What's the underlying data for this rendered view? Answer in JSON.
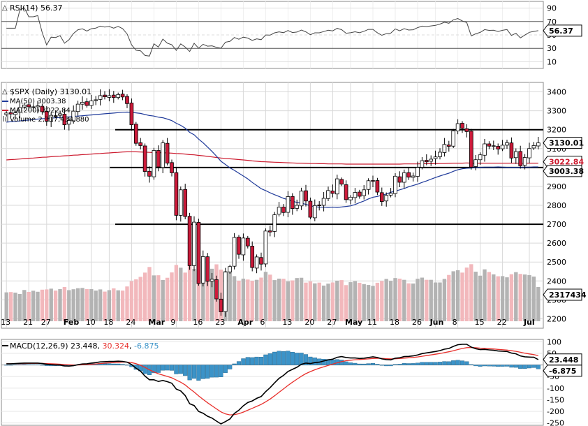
{
  "symbol_line": {
    "symbol": "$SPX",
    "period": "(Daily)",
    "last": "3130.01"
  },
  "rsi": {
    "label": "RSI(14)",
    "value": "56.37",
    "ticks": [
      90,
      70,
      50,
      30,
      10
    ],
    "overbought": 70,
    "oversold": 30
  },
  "price": {
    "last_tag": "3130.01",
    "ma50_tag": "3003.38",
    "ma200_tag": "3022.84",
    "ticks": [
      3400,
      3300,
      3200,
      3100,
      3000,
      2900,
      2800,
      2700,
      2600,
      2500,
      2400,
      2300,
      2200
    ],
    "ylim": [
      2150,
      3450
    ]
  },
  "legend": {
    "ma50": "MA(50) 3003.38",
    "ma200": "MA(200) 3022.84",
    "volume": "Volume 2,317,434,880",
    "ma50_color": "#1f3a9a",
    "ma200_color": "#cc1a2e"
  },
  "volume": {
    "tag": "2317434"
  },
  "x_axis": {
    "ticks": [
      "13",
      "21",
      "27",
      "Feb",
      "10",
      "18",
      "24",
      "Mar",
      "9",
      "16",
      "23",
      "Apr",
      "6",
      "13",
      "20",
      "27",
      "May",
      "11",
      "18",
      "26",
      "Jun",
      "8",
      "15",
      "22",
      "Jul"
    ]
  },
  "macd": {
    "label": "MACD(12,26,9)",
    "macd_value": "23.448",
    "signal_value": "30.324",
    "hist_value": "-6.875",
    "macd_tag": "23.448",
    "hist_tag": "-6.875",
    "ticks": [
      100,
      50,
      0,
      -50,
      -100,
      -150,
      -200,
      -250
    ],
    "colors": {
      "macd": "#000000",
      "signal": "#e8302c",
      "hist": "#3b93c8"
    }
  },
  "colors": {
    "up": "#ffffff",
    "down": "#cc1a3a",
    "vol_up": "#b3b3b3",
    "vol_down": "#f2b8bc",
    "grid": "#d9d9d9"
  },
  "chart_data": {
    "type": "candlestick",
    "title": "$SPX (Daily)",
    "dates": [
      "2020-01-13",
      "2020-01-14",
      "2020-01-15",
      "2020-01-16",
      "2020-01-17",
      "2020-01-21",
      "2020-01-22",
      "2020-01-23",
      "2020-01-24",
      "2020-01-27",
      "2020-01-28",
      "2020-01-29",
      "2020-01-30",
      "2020-01-31",
      "2020-02-03",
      "2020-02-04",
      "2020-02-05",
      "2020-02-06",
      "2020-02-07",
      "2020-02-10",
      "2020-02-11",
      "2020-02-12",
      "2020-02-13",
      "2020-02-14",
      "2020-02-18",
      "2020-02-19",
      "2020-02-20",
      "2020-02-21",
      "2020-02-24",
      "2020-02-25",
      "2020-02-26",
      "2020-02-27",
      "2020-02-28",
      "2020-03-02",
      "2020-03-03",
      "2020-03-04",
      "2020-03-05",
      "2020-03-06",
      "2020-03-09",
      "2020-03-10",
      "2020-03-11",
      "2020-03-12",
      "2020-03-13",
      "2020-03-16",
      "2020-03-17",
      "2020-03-18",
      "2020-03-19",
      "2020-03-20",
      "2020-03-23",
      "2020-03-24",
      "2020-03-25",
      "2020-03-26",
      "2020-03-27",
      "2020-03-30",
      "2020-03-31",
      "2020-04-01",
      "2020-04-02",
      "2020-04-03",
      "2020-04-06",
      "2020-04-07",
      "2020-04-08",
      "2020-04-09",
      "2020-04-13",
      "2020-04-14",
      "2020-04-15",
      "2020-04-16",
      "2020-04-17",
      "2020-04-20",
      "2020-04-21",
      "2020-04-22",
      "2020-04-23",
      "2020-04-24",
      "2020-04-27",
      "2020-04-28",
      "2020-04-29",
      "2020-04-30",
      "2020-05-01",
      "2020-05-04",
      "2020-05-05",
      "2020-05-06",
      "2020-05-07",
      "2020-05-08",
      "2020-05-11",
      "2020-05-12",
      "2020-05-13",
      "2020-05-14",
      "2020-05-15",
      "2020-05-18",
      "2020-05-19",
      "2020-05-20",
      "2020-05-21",
      "2020-05-22",
      "2020-05-26",
      "2020-05-27",
      "2020-05-28",
      "2020-05-29",
      "2020-06-01",
      "2020-06-02",
      "2020-06-03",
      "2020-06-04",
      "2020-06-05",
      "2020-06-08",
      "2020-06-09",
      "2020-06-10",
      "2020-06-11",
      "2020-06-12",
      "2020-06-15",
      "2020-06-16",
      "2020-06-17",
      "2020-06-18",
      "2020-06-19",
      "2020-06-22",
      "2020-06-23",
      "2020-06-24",
      "2020-06-25",
      "2020-06-26",
      "2020-06-29",
      "2020-06-30",
      "2020-07-01",
      "2020-07-02"
    ],
    "close": [
      3288,
      3283,
      3289,
      3317,
      3330,
      3321,
      3321,
      3326,
      3295,
      3244,
      3276,
      3274,
      3284,
      3226,
      3249,
      3298,
      3335,
      3345,
      3328,
      3352,
      3358,
      3380,
      3374,
      3380,
      3370,
      3386,
      3373,
      3338,
      3226,
      3128,
      3116,
      2979,
      2954,
      3090,
      3003,
      3130,
      3023,
      2972,
      2747,
      2882,
      2741,
      2481,
      2711,
      2386,
      2529,
      2398,
      2409,
      2305,
      2237,
      2447,
      2476,
      2630,
      2541,
      2627,
      2585,
      2471,
      2527,
      2489,
      2664,
      2659,
      2750,
      2790,
      2762,
      2846,
      2783,
      2800,
      2875,
      2823,
      2737,
      2799,
      2798,
      2837,
      2878,
      2863,
      2940,
      2912,
      2830,
      2843,
      2868,
      2848,
      2882,
      2930,
      2930,
      2870,
      2820,
      2853,
      2864,
      2954,
      2922,
      2972,
      2949,
      2955,
      3000,
      3036,
      3030,
      3044,
      3056,
      3081,
      3122,
      3112,
      3194,
      3232,
      3207,
      3190,
      3002,
      3041,
      3067,
      3125,
      3113,
      3115,
      3098,
      3118,
      3131,
      3050,
      3084,
      3009,
      3053,
      3100,
      3116,
      3130
    ],
    "ma50": [
      3240,
      3242,
      3244,
      3246,
      3249,
      3251,
      3253,
      3256,
      3258,
      3259,
      3261,
      3263,
      3265,
      3266,
      3268,
      3270,
      3272,
      3274,
      3276,
      3278,
      3280,
      3282,
      3284,
      3286,
      3288,
      3290,
      3292,
      3293,
      3292,
      3289,
      3286,
      3280,
      3275,
      3272,
      3266,
      3263,
      3256,
      3248,
      3234,
      3223,
      3208,
      3186,
      3173,
      3150,
      3131,
      3108,
      3085,
      3060,
      3033,
      3016,
      2998,
      2985,
      2970,
      2955,
      2940,
      2921,
      2905,
      2888,
      2878,
      2866,
      2856,
      2847,
      2837,
      2830,
      2822,
      2815,
      2811,
      2805,
      2797,
      2793,
      2790,
      2790,
      2789,
      2790,
      2789,
      2791,
      2794,
      2797,
      2804,
      2814,
      2823,
      2834,
      2843,
      2847,
      2853,
      2860,
      2869,
      2875,
      2882,
      2889,
      2898,
      2905,
      2912,
      2921,
      2929,
      2938,
      2947,
      2955,
      2963,
      2970,
      2980,
      2988,
      2993,
      2996,
      2997,
      2999,
      3001,
      3002,
      3002,
      3002,
      3003,
      3002,
      3001,
      3001,
      3001,
      3001,
      3002,
      3002,
      3003,
      3003
    ],
    "ma200": [
      3040,
      3042,
      3043,
      3045,
      3047,
      3049,
      3050,
      3052,
      3054,
      3055,
      3057,
      3059,
      3060,
      3062,
      3063,
      3065,
      3066,
      3068,
      3069,
      3071,
      3073,
      3074,
      3076,
      3077,
      3079,
      3080,
      3082,
      3083,
      3083,
      3083,
      3082,
      3081,
      3080,
      3079,
      3078,
      3078,
      3077,
      3076,
      3074,
      3073,
      3071,
      3068,
      3067,
      3064,
      3062,
      3059,
      3056,
      3053,
      3050,
      3048,
      3046,
      3044,
      3042,
      3040,
      3038,
      3035,
      3033,
      3031,
      3030,
      3029,
      3028,
      3027,
      3026,
      3025,
      3024,
      3023,
      3023,
      3022,
      3021,
      3021,
      3020,
      3020,
      3019,
      3019,
      3019,
      3019,
      3018,
      3018,
      3018,
      3018,
      3018,
      3018,
      3018,
      3018,
      3018,
      3018,
      3018,
      3018,
      3018,
      3019,
      3019,
      3019,
      3019,
      3020,
      3020,
      3020,
      3020,
      3021,
      3021,
      3022,
      3023,
      3023,
      3023,
      3024,
      3023,
      3023,
      3023,
      3023,
      3023,
      3023,
      3023,
      3023,
      3023,
      3023,
      3023,
      3023,
      3023,
      3023,
      3023,
      3023
    ],
    "volume_millions": [
      1960,
      1980,
      1940,
      1850,
      2120,
      1990,
      2070,
      2000,
      2140,
      2160,
      2210,
      2080,
      2180,
      2320,
      2110,
      2170,
      2240,
      2260,
      2180,
      2180,
      2080,
      2160,
      2010,
      2110,
      2230,
      2100,
      2080,
      2360,
      2720,
      2840,
      3010,
      3300,
      3680,
      3110,
      3120,
      2800,
      2950,
      3310,
      3820,
      3630,
      3300,
      3810,
      3550,
      4020,
      3550,
      3630,
      3560,
      3860,
      3500,
      3410,
      3420,
      3060,
      2750,
      2890,
      2830,
      2740,
      2810,
      2960,
      3350,
      3160,
      2790,
      2890,
      2880,
      2700,
      2770,
      2930,
      2950,
      2620,
      2700,
      2570,
      2620,
      2420,
      2550,
      2630,
      2750,
      2790,
      2450,
      2650,
      2720,
      2610,
      2520,
      2460,
      2400,
      2610,
      2730,
      2870,
      2740,
      2930,
      2890,
      2810,
      2570,
      2560,
      2880,
      2960,
      2810,
      2810,
      2630,
      2630,
      2870,
      3140,
      3390,
      3460,
      3300,
      3640,
      3870,
      3360,
      3090,
      3520,
      3340,
      3180,
      3050,
      3060,
      2980,
      3190,
      3330,
      3210,
      3170,
      3130,
      3030,
      2320
    ],
    "volume_last": "2,317,434,880",
    "rsi_last": 56.37,
    "macd_last": {
      "macd": 23.448,
      "signal": 30.324,
      "histogram": -6.875
    },
    "horizontal_lines": [
      3200,
      3000,
      2700
    ],
    "ylim": [
      2150,
      3450
    ],
    "rsi_ylim": [
      0,
      100
    ],
    "macd_ylim": [
      -260,
      110
    ],
    "macd_series": [
      5,
      5,
      6,
      7,
      8,
      8,
      8,
      8,
      6,
      3,
      1,
      0,
      0,
      -4,
      -5,
      -3,
      1,
      4,
      5,
      8,
      10,
      13,
      14,
      15,
      15,
      16,
      15,
      12,
      2,
      -14,
      -27,
      -48,
      -64,
      -64,
      -71,
      -67,
      -72,
      -79,
      -104,
      -112,
      -132,
      -167,
      -175,
      -200,
      -208,
      -221,
      -229,
      -242,
      -254,
      -244,
      -233,
      -209,
      -195,
      -176,
      -162,
      -155,
      -144,
      -136,
      -115,
      -98,
      -77,
      -58,
      -45,
      -28,
      -19,
      -10,
      3,
      8,
      6,
      10,
      12,
      17,
      22,
      25,
      33,
      36,
      32,
      30,
      30,
      28,
      29,
      32,
      35,
      32,
      26,
      23,
      22,
      29,
      31,
      36,
      37,
      39,
      43,
      49,
      52,
      55,
      58,
      62,
      68,
      71,
      80,
      87,
      89,
      89,
      77,
      70,
      66,
      67,
      65,
      63,
      60,
      59,
      58,
      51,
      48,
      39,
      35,
      34,
      33,
      23
    ]
  }
}
